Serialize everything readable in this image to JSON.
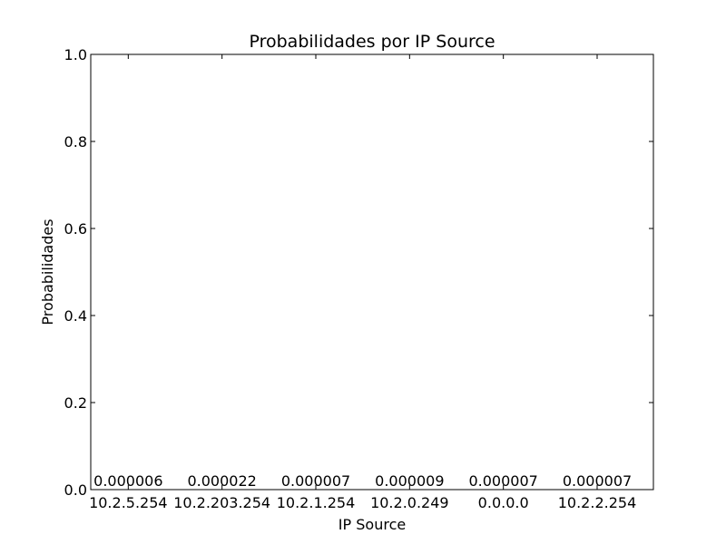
{
  "chart_data": {
    "type": "bar",
    "title": "Probabilidades por IP Source",
    "xlabel": "IP Source",
    "ylabel": "Probabilidades",
    "categories": [
      "10.2.5.254",
      "10.2.203.254",
      "10.2.1.254",
      "10.2.0.249",
      "0.0.0.0",
      "10.2.2.254"
    ],
    "values": [
      6e-06,
      2.2e-05,
      7e-06,
      9e-06,
      7e-06,
      7e-06
    ],
    "value_labels": [
      "0.000006",
      "0.000022",
      "0.000007",
      "0.000009",
      "0.000007",
      "0.000007"
    ],
    "ylim": [
      0,
      1
    ],
    "yticks": [
      0.0,
      0.2,
      0.4,
      0.6,
      0.8,
      1.0
    ],
    "ytick_labels": [
      "0.0",
      "0.2",
      "0.4",
      "0.6",
      "0.8",
      "1.0"
    ],
    "grid": false,
    "legend": "none",
    "bar_color": "#0000ff"
  }
}
